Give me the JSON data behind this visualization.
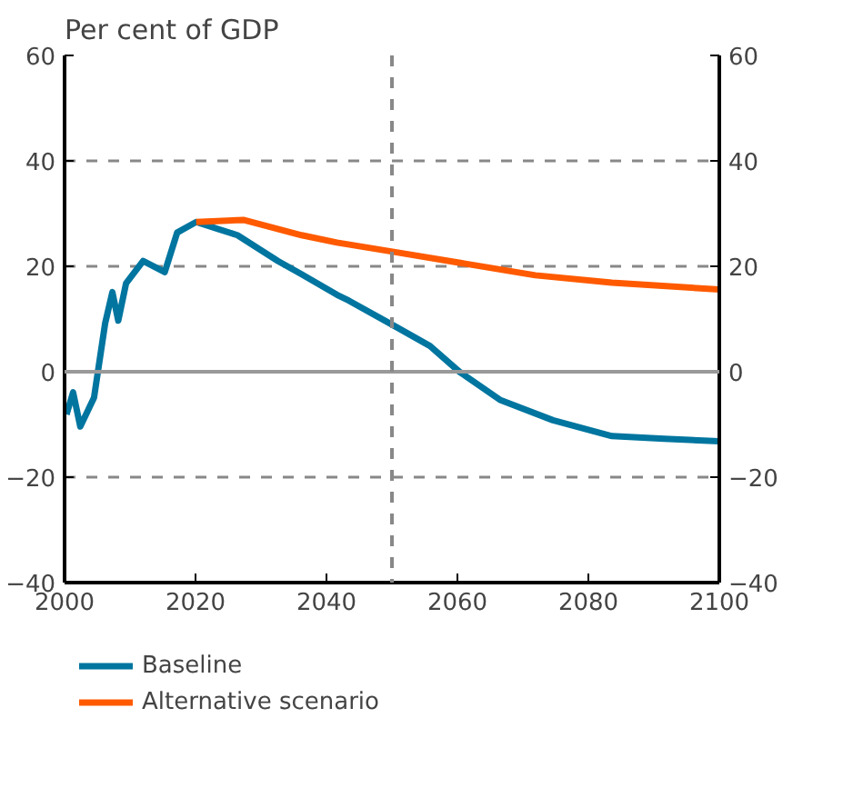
{
  "chart_data": {
    "type": "line",
    "title": "Per cent of GDP",
    "xlim": [
      2000,
      2100
    ],
    "xticks": [
      2000,
      2020,
      2040,
      2060,
      2080,
      2100
    ],
    "ylim": [
      -40,
      60
    ],
    "yticks": [
      -40,
      -20,
      0,
      20,
      40,
      60
    ],
    "y2lim": [
      -40,
      60
    ],
    "y2ticks": [
      -40,
      -20,
      0,
      20,
      40,
      60
    ],
    "grid": "y",
    "legend": "bottom",
    "line_style": "solid",
    "ref_lines": [
      {
        "axis": "y",
        "value": 0,
        "color": "#999999",
        "line_style": "solid"
      },
      {
        "axis": "x",
        "value": 2050,
        "color": "#888888",
        "line_style": "dashed"
      }
    ],
    "series": [
      {
        "name": "Baseline",
        "color": "#00759f",
        "x": [
          2000.3,
          2001.3,
          2002.4,
          2004.5,
          2006.2,
          2007.3,
          2008.2,
          2009.4,
          2012,
          2015.3,
          2017.2,
          2020.1,
          2026.4,
          2032.6,
          2036.2,
          2041.6,
          2043.4,
          2050.5,
          2055.8,
          2060.3,
          2066.6,
          2074.6,
          2083.6,
          2091.6,
          2100
        ],
        "values": [
          -8.1,
          -3.9,
          -10.4,
          -4.9,
          9.2,
          15.1,
          9.7,
          16.8,
          21,
          18.9,
          26.4,
          28.4,
          25.9,
          21,
          18.5,
          14.6,
          13.5,
          8.6,
          4.9,
          0,
          -5.4,
          -9.2,
          -12.2,
          -12.7,
          -13.2
        ]
      },
      {
        "name": "Alternative scenario",
        "color": "#ff5a00",
        "x": [
          2020.1,
          2027.3,
          2036.2,
          2041.6,
          2050.5,
          2061.2,
          2071.9,
          2083.6,
          2100
        ],
        "values": [
          28.4,
          28.8,
          25.9,
          24.5,
          22.7,
          20.5,
          18.3,
          16.9,
          15.6
        ]
      }
    ]
  }
}
